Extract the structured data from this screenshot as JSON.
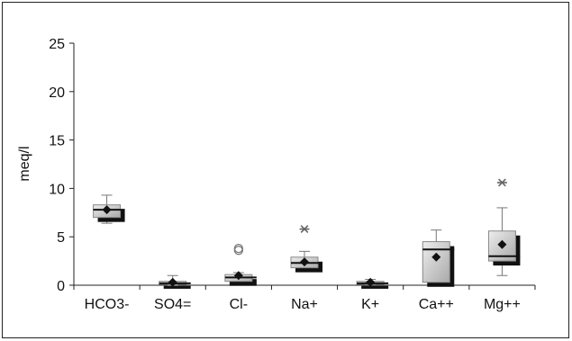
{
  "chart_data": {
    "type": "boxplot",
    "title": "",
    "xlabel": "",
    "ylabel": "meq/l",
    "ylim": [
      0,
      25
    ],
    "yticks": [
      0,
      5,
      10,
      15,
      20,
      25
    ],
    "grid": false,
    "legend": "none",
    "categories": [
      "HCO3-",
      "SO4=",
      "Cl-",
      "Na+",
      "K+",
      "Ca++",
      "Mg++"
    ],
    "boxes": [
      {
        "category": "HCO3-",
        "whisker_low": 6.4,
        "q1": 7.0,
        "median": 7.8,
        "q3": 8.3,
        "whisker_high": 9.3,
        "mean": 7.8,
        "outliers": [],
        "extremes": []
      },
      {
        "category": "SO4=",
        "whisker_low": 0.0,
        "q1": 0.1,
        "median": 0.2,
        "q3": 0.4,
        "whisker_high": 1.0,
        "mean": 0.3,
        "outliers": [],
        "extremes": []
      },
      {
        "category": "Cl-",
        "whisker_low": 0.2,
        "q1": 0.4,
        "median": 0.8,
        "q3": 1.1,
        "whisker_high": 1.3,
        "mean": 1.0,
        "outliers": [
          3.6,
          3.8
        ],
        "extremes": []
      },
      {
        "category": "Na+",
        "whisker_low": 1.5,
        "q1": 1.8,
        "median": 2.3,
        "q3": 2.9,
        "whisker_high": 3.5,
        "mean": 2.4,
        "outliers": [],
        "extremes": [
          5.8
        ]
      },
      {
        "category": "K+",
        "whisker_low": 0.05,
        "q1": 0.1,
        "median": 0.2,
        "q3": 0.4,
        "whisker_high": 0.6,
        "mean": 0.3,
        "outliers": [],
        "extremes": []
      },
      {
        "category": "Ca++",
        "whisker_low": 0.3,
        "q1": 0.3,
        "median": 3.7,
        "q3": 4.5,
        "whisker_high": 5.7,
        "mean": 2.9,
        "outliers": [],
        "extremes": []
      },
      {
        "category": "Mg++",
        "whisker_low": 1.0,
        "q1": 2.5,
        "median": 3.0,
        "q3": 5.6,
        "whisker_high": 8.0,
        "mean": 4.2,
        "outliers": [],
        "extremes": [
          10.6
        ]
      }
    ]
  }
}
